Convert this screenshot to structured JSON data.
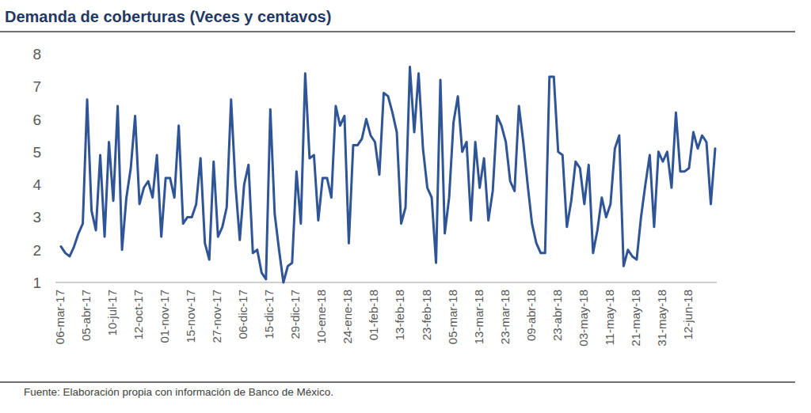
{
  "chart_data": {
    "type": "line",
    "title": "Demanda de coberturas (Veces y centavos)",
    "source": "Fuente: Elaboración propia con información de Banco de México.",
    "color": "#2f5597",
    "ylim": [
      1,
      8
    ],
    "yticks": [
      1,
      2,
      3,
      4,
      5,
      6,
      7,
      8
    ],
    "grid": false,
    "categories": [
      "06-mar-17",
      null,
      null,
      null,
      null,
      null,
      "05-abr-17",
      null,
      null,
      null,
      null,
      null,
      "10-jul-17",
      null,
      null,
      null,
      null,
      null,
      "12-oct-17",
      null,
      null,
      null,
      null,
      null,
      "01-nov-17",
      null,
      null,
      null,
      null,
      null,
      "15-nov-17",
      null,
      null,
      null,
      null,
      null,
      "27-nov-17",
      null,
      null,
      null,
      null,
      null,
      "06-dic-17",
      null,
      null,
      null,
      null,
      null,
      "15-dic-17",
      null,
      null,
      null,
      null,
      null,
      "29-dic-17",
      null,
      null,
      null,
      null,
      null,
      "10-ene-18",
      null,
      null,
      null,
      null,
      null,
      "24-ene-18",
      null,
      null,
      null,
      null,
      null,
      "01-feb-18",
      null,
      null,
      null,
      null,
      null,
      "13-feb-18",
      null,
      null,
      null,
      null,
      null,
      "23-feb-18",
      null,
      null,
      null,
      null,
      null,
      "05-mar-18",
      null,
      null,
      null,
      null,
      null,
      "13-mar-18",
      null,
      null,
      null,
      null,
      null,
      "23-mar-18",
      null,
      null,
      null,
      null,
      null,
      "09-abr-18",
      null,
      null,
      null,
      null,
      null,
      "23-abr-18",
      null,
      null,
      null,
      null,
      null,
      "03-may-18",
      null,
      null,
      null,
      null,
      null,
      "11-may-18",
      null,
      null,
      null,
      null,
      null,
      "21-may-18",
      null,
      null,
      null,
      null,
      null,
      "31-may-18",
      null,
      null,
      null,
      null,
      null,
      "12-jun-18",
      null,
      null,
      null,
      null,
      null,
      null
    ],
    "values": [
      2.1,
      1.9,
      1.8,
      2.1,
      2.5,
      2.8,
      6.6,
      3.2,
      2.6,
      4.9,
      2.4,
      5.3,
      3.5,
      6.4,
      2.0,
      3.6,
      4.5,
      6.1,
      3.4,
      3.9,
      4.1,
      3.6,
      4.9,
      2.4,
      4.2,
      4.2,
      3.6,
      5.8,
      2.8,
      3.0,
      3.0,
      3.4,
      4.8,
      2.2,
      1.7,
      4.7,
      2.4,
      2.7,
      3.3,
      6.6,
      4.0,
      2.3,
      4.0,
      4.6,
      1.9,
      2.0,
      1.3,
      1.1,
      6.3,
      3.1,
      2.0,
      1.0,
      1.5,
      1.6,
      4.4,
      2.8,
      7.4,
      4.8,
      4.9,
      2.9,
      4.2,
      4.2,
      3.6,
      6.4,
      5.8,
      6.1,
      2.2,
      5.2,
      5.2,
      5.4,
      6.0,
      5.5,
      5.3,
      4.3,
      6.8,
      6.7,
      6.2,
      5.6,
      2.8,
      3.3,
      7.6,
      5.6,
      7.4,
      5.1,
      3.9,
      3.6,
      1.6,
      7.2,
      2.5,
      3.6,
      5.9,
      6.7,
      5.0,
      5.3,
      2.9,
      5.3,
      3.9,
      4.8,
      2.9,
      3.8,
      6.1,
      5.8,
      5.3,
      4.1,
      3.8,
      6.4,
      5.3,
      4.0,
      2.8,
      2.2,
      1.9,
      1.9,
      7.3,
      7.3,
      5.0,
      4.9,
      2.7,
      3.5,
      4.7,
      4.5,
      3.4,
      4.6,
      1.9,
      2.6,
      3.6,
      3.0,
      3.4,
      5.1,
      5.5,
      1.5,
      2.0,
      1.8,
      1.7,
      3.0,
      4.0,
      4.9,
      2.7,
      5.0,
      4.7,
      5.0,
      3.9,
      6.2,
      4.4,
      4.4,
      4.5,
      5.6,
      5.1,
      5.5,
      5.3,
      3.4,
      5.1
    ]
  }
}
